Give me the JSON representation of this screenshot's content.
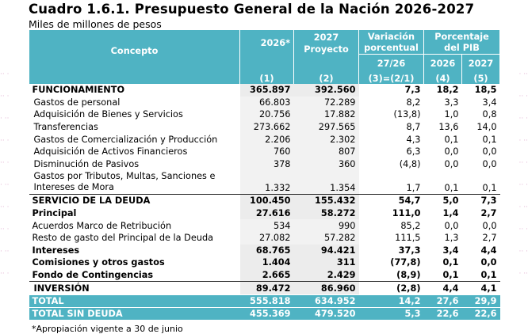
{
  "document": {
    "title": "Cuadro 1.6.1. Presupuesto General de la Nación 2026-2027",
    "subtitle": "Miles de millones de pesos",
    "footnote": "*Apropiación vigente a 30 de junio"
  },
  "header": {
    "concepto": "Concepto",
    "col2026": "2026*",
    "col2027_line1": "2027",
    "col2027_line2": "Proyecto",
    "var_line1": "Variación",
    "var_line2": "porcentual",
    "pib_line1": "Porcentaje",
    "pib_line2": "del PIB",
    "var_sub": "27/26",
    "pib_2026": "2026",
    "pib_2027": "2027",
    "idx1": "(1)",
    "idx2": "(2)",
    "idx3": "(3)=(2/1)",
    "idx4": "(4)",
    "idx5": "(5)"
  },
  "rows": [
    {
      "label": "FUNCIONAMIENTO",
      "v2026": "365.897",
      "v2027": "392.560",
      "var": "7,3",
      "p26": "18,2",
      "p27": "18,5"
    },
    {
      "label": "Gastos de personal",
      "v2026": "66.803",
      "v2027": "72.289",
      "var": "8,2",
      "p26": "3,3",
      "p27": "3,4"
    },
    {
      "label": "Adquisición de Bienes y Servicios",
      "v2026": "20.756",
      "v2027": "17.882",
      "var": "(13,8)",
      "p26": "1,0",
      "p27": "0,8"
    },
    {
      "label": "Transferencias",
      "v2026": "273.662",
      "v2027": "297.565",
      "var": "8,7",
      "p26": "13,6",
      "p27": "14,0"
    },
    {
      "label": "Gastos de Comercialización y Producción",
      "v2026": "2.206",
      "v2027": "2.302",
      "var": "4,3",
      "p26": "0,1",
      "p27": "0,1"
    },
    {
      "label": "Adquisición de Activos Financieros",
      "v2026": "760",
      "v2027": "807",
      "var": "6,3",
      "p26": "0,0",
      "p27": "0,0"
    },
    {
      "label": "Disminución de Pasivos",
      "v2026": "378",
      "v2027": "360",
      "var": "(4,8)",
      "p26": "0,0",
      "p27": "0,0"
    },
    {
      "label": "Gastos por Tributos, Multas, Sanciones e Intereses de Mora",
      "v2026": "1.332",
      "v2027": "1.354",
      "var": "1,7",
      "p26": "0,1",
      "p27": "0,1"
    },
    {
      "label": "SERVICIO DE LA DEUDA",
      "v2026": "100.450",
      "v2027": "155.432",
      "var": "54,7",
      "p26": "5,0",
      "p27": "7,3"
    },
    {
      "label": "Principal",
      "v2026": "27.616",
      "v2027": "58.272",
      "var": "111,0",
      "p26": "1,4",
      "p27": "2,7"
    },
    {
      "label": "Acuerdos Marco de Retribución",
      "v2026": "534",
      "v2027": "990",
      "var": "85,2",
      "p26": "0,0",
      "p27": "0,0"
    },
    {
      "label": "Resto de gasto del Principal de la Deuda",
      "v2026": "27.082",
      "v2027": "57.282",
      "var": "111,5",
      "p26": "1,3",
      "p27": "2,7"
    },
    {
      "label": "Intereses",
      "v2026": "68.765",
      "v2027": "94.421",
      "var": "37,3",
      "p26": "3,4",
      "p27": "4,4"
    },
    {
      "label": "Comisiones y otros gastos",
      "v2026": "1.404",
      "v2027": "311",
      "var": "(77,8)",
      "p26": "0,1",
      "p27": "0,0"
    },
    {
      "label": "Fondo de Contingencias",
      "v2026": "2.665",
      "v2027": "2.429",
      "var": "(8,9)",
      "p26": "0,1",
      "p27": "0,1"
    },
    {
      "label": "INVERSIÓN",
      "v2026": "89.472",
      "v2027": "86.960",
      "var": "(2,8)",
      "p26": "4,4",
      "p27": "4,1"
    }
  ],
  "totals": [
    {
      "label": "TOTAL",
      "v2026": "555.818",
      "v2027": "634.952",
      "var": "14,2",
      "p26": "27,6",
      "p27": "29,9"
    },
    {
      "label": "TOTAL SIN DEUDA",
      "v2026": "455.369",
      "v2027": "479.520",
      "var": "5,3",
      "p26": "22,6",
      "p27": "22,6"
    }
  ],
  "colors": {
    "header_bg": "#4fb3c3",
    "header_text": "#ffffff",
    "value_col_bg": "#f2f2f2"
  }
}
